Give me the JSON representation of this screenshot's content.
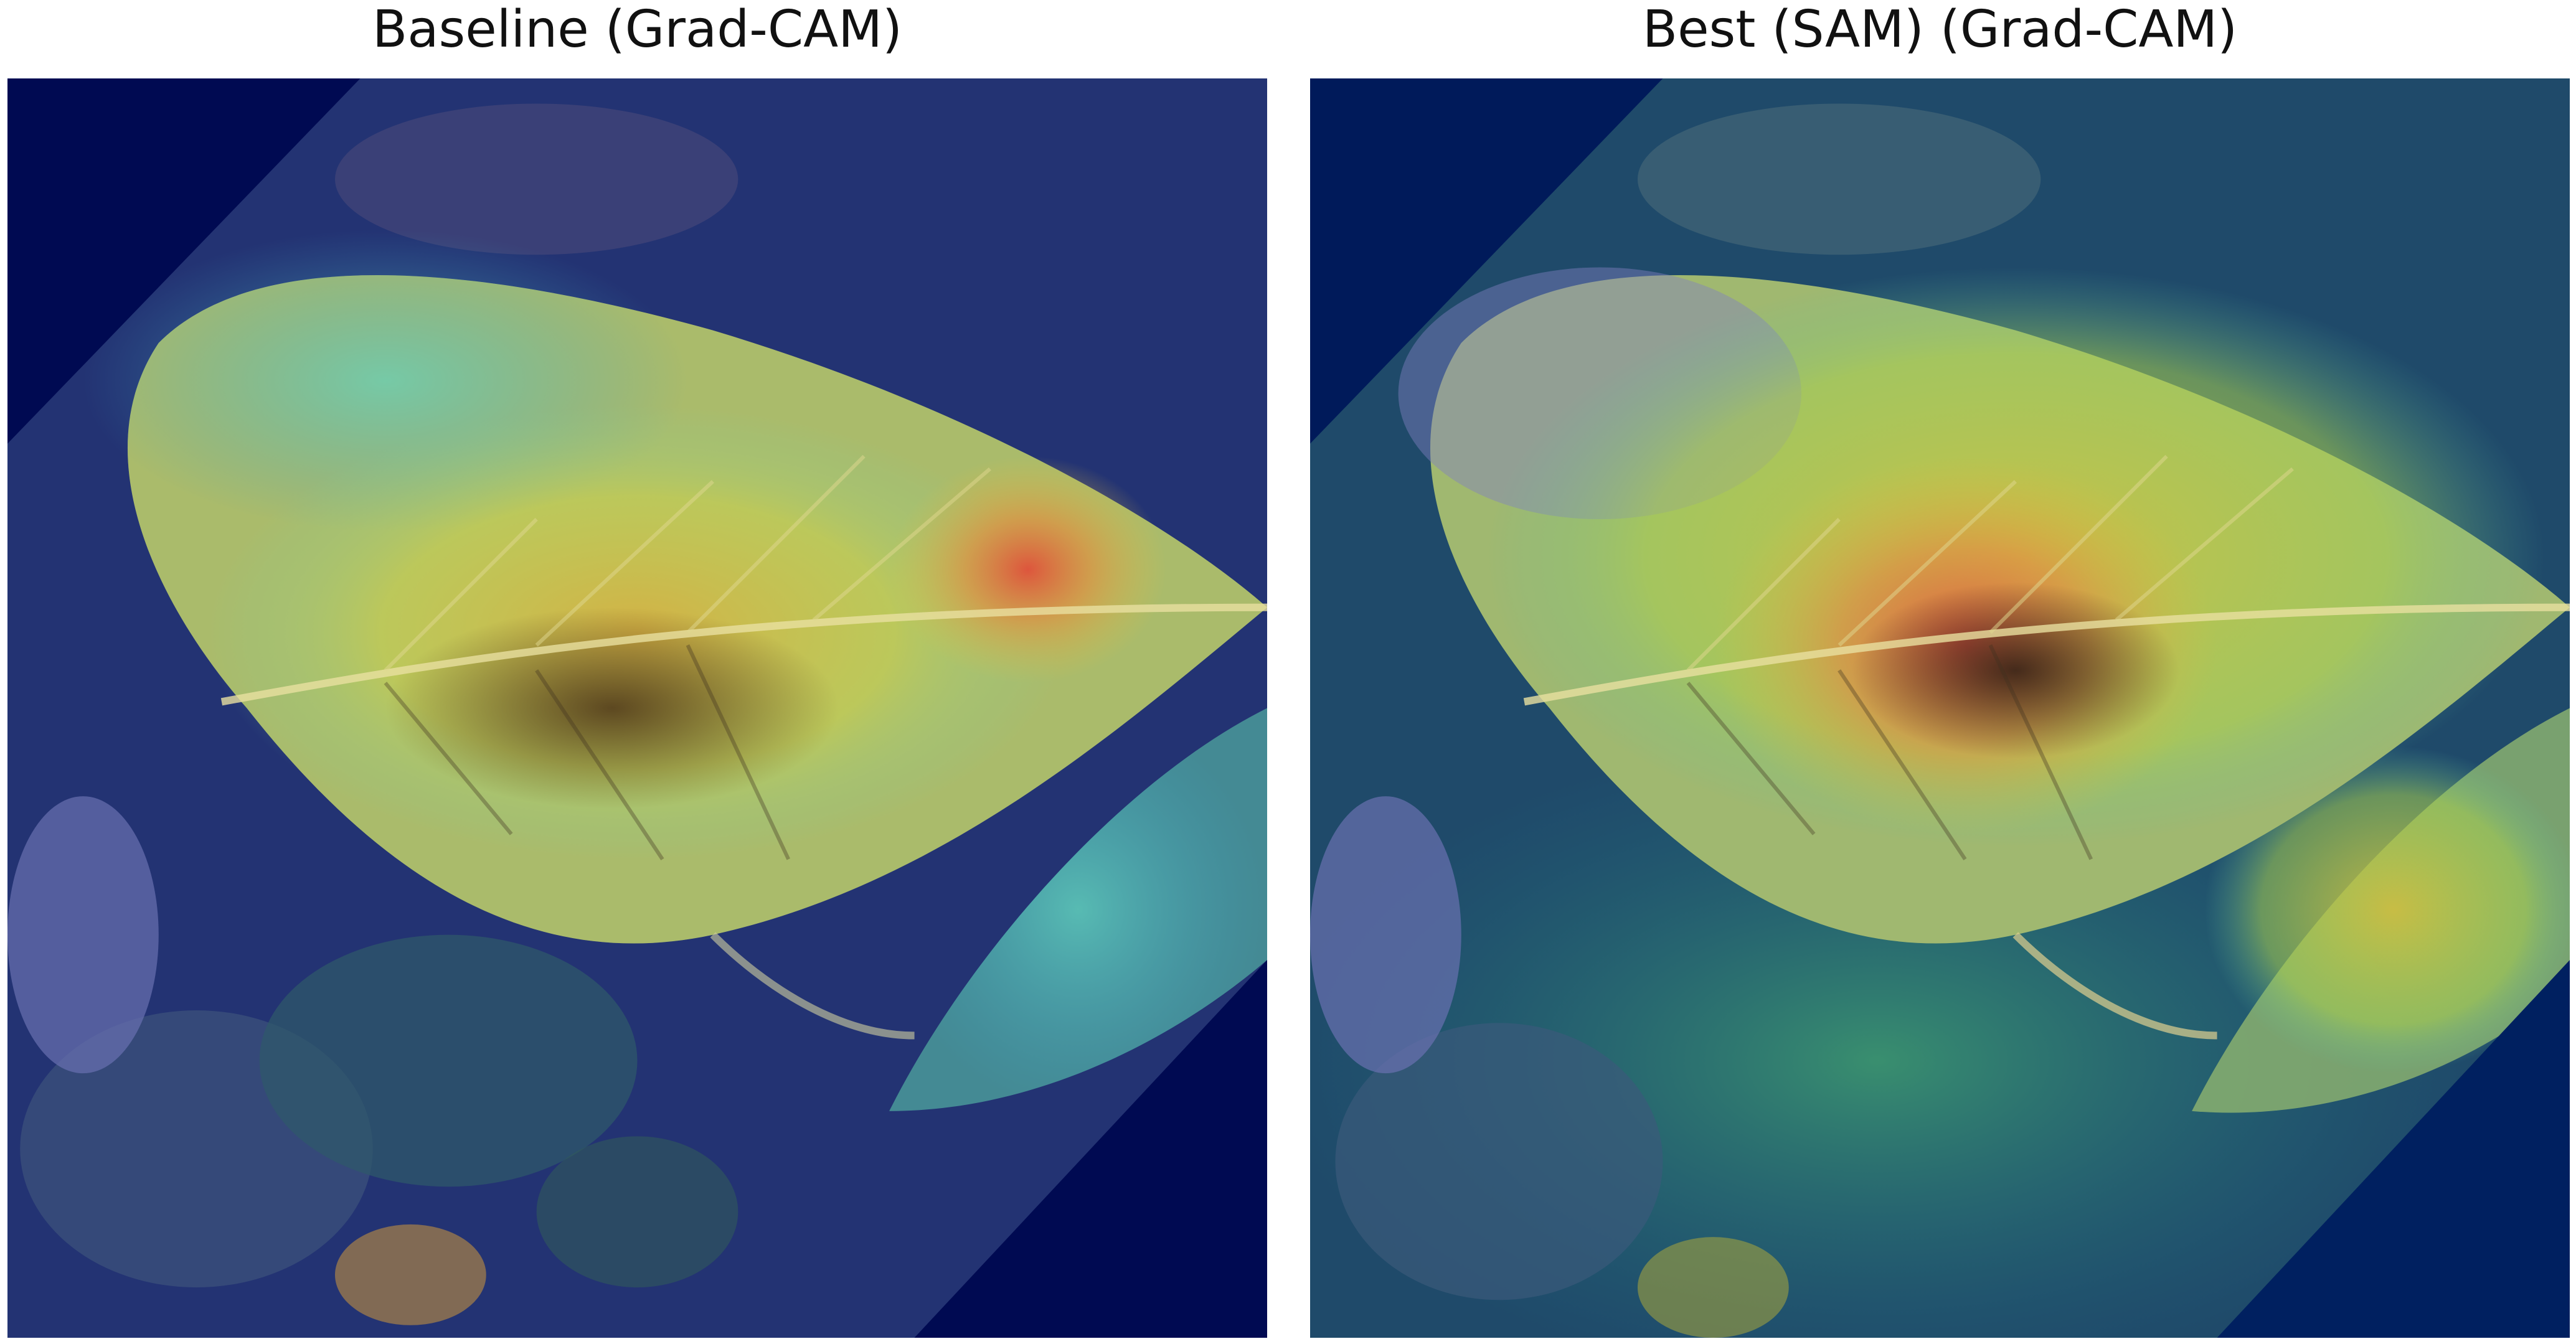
{
  "figure": {
    "panels": [
      {
        "title": "Baseline (Grad-CAM)",
        "image_icon": "leaf-gradcam-heatmap"
      },
      {
        "title": "Best (SAM) (Grad-CAM)",
        "image_icon": "leaf-gradcam-heatmap"
      }
    ]
  },
  "colors": {
    "background": "#000a52",
    "heat_high": "#e0503a",
    "heat_mid": "#d8d040",
    "heat_low": "#40c0b0",
    "leaf": "#b8c060"
  }
}
